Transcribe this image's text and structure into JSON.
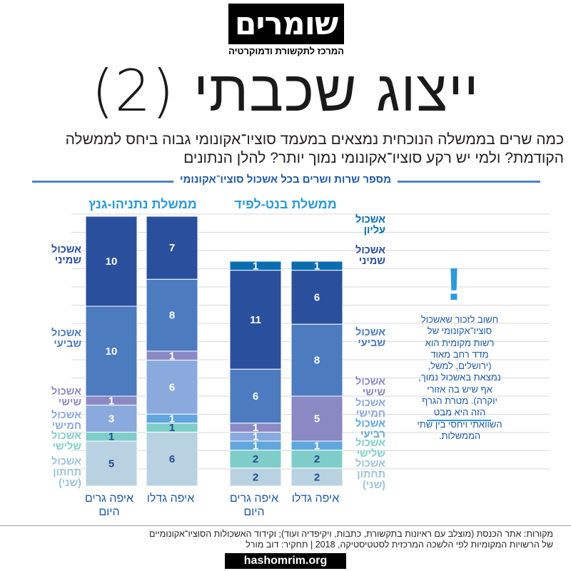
{
  "header": {
    "logo_text": "שומרים",
    "logo_subtitle": "המרכז לתקשורת ודמוקרטיה",
    "title": "ייצוג שכבתי (2)",
    "subtitle": "כמה שרים בממשלה הנוכחית נמצאים במעמד סוציו־אקונומי גבוה ביחס לממשלה הקודמת? ולמי יש רקע סוציו־אקונומי נמוך יותר? להלן הנתונים"
  },
  "section_title": "מספר שרות ושרים בכל אשכול סוציו־אקונומי",
  "clusters": [
    {
      "label": "אשכול עליון",
      "color": "#0a6db0"
    },
    {
      "label": "אשכול שמיני",
      "color": "#2a4f9c"
    },
    {
      "label": "אשכול שביעי",
      "color": "#4c7bc0"
    },
    {
      "label": "אשכול שישי",
      "color": "#8b89c4"
    },
    {
      "label": "אשכול חמישי",
      "color": "#8aa9dc"
    },
    {
      "label": "אשכול רביעי",
      "color": "#5fa7de"
    },
    {
      "label": "אשכול שלישי",
      "color": "#7fcdc9"
    },
    {
      "label": "אשכול תחתון (שני)",
      "color": "#b8d2e2"
    }
  ],
  "cluster_label_colors": {
    "left": [
      "#2a4f9c",
      "#4c7bc0",
      "#8b89c4",
      "#8aa9dc",
      "#7fcdc9",
      "#9ec3da"
    ],
    "right": [
      "#0a6db0",
      "#2a4f9c",
      "#4c7bc0",
      "#8b89c4",
      "#8aa9dc",
      "#5fa7de",
      "#7fcdc9",
      "#9ec3da"
    ]
  },
  "left_cluster_labels": [
    "אשכול שמיני",
    "אשכול שביעי",
    "אשכול שישי",
    "אשכול חמישי",
    "אשכול שלישי",
    "אשכול תחתון (שני)"
  ],
  "chart_data": {
    "type": "bar",
    "stacked": true,
    "governments": [
      "ממשלת נתניהו-גנץ",
      "ממשלת בנט-לפיד"
    ],
    "categories": [
      "איפה גרים היום",
      "איפה גדלו",
      "איפה גרים היום",
      "איפה גדלו"
    ],
    "category_government": [
      0,
      0,
      1,
      1
    ],
    "series": [
      {
        "name": "אשכול עליון",
        "values": [
          0,
          0,
          1,
          1
        ]
      },
      {
        "name": "אשכול שמיני",
        "values": [
          10,
          7,
          11,
          6
        ]
      },
      {
        "name": "אשכול שביעי",
        "values": [
          10,
          8,
          6,
          8
        ]
      },
      {
        "name": "אשכול שישי",
        "values": [
          1,
          1,
          1,
          5
        ]
      },
      {
        "name": "אשכול חמישי",
        "values": [
          3,
          6,
          1,
          0
        ]
      },
      {
        "name": "אשכול רביעי",
        "values": [
          0,
          1,
          1,
          1
        ]
      },
      {
        "name": "אשכול שלישי",
        "values": [
          1,
          1,
          2,
          2
        ]
      },
      {
        "name": "אשכול תחתון (שני)",
        "values": [
          5,
          6,
          2,
          2
        ]
      }
    ],
    "xlabel": "",
    "ylabel": "",
    "grid": true
  },
  "note": {
    "icon": "exclamation-icon",
    "text": "חשוב לזכור שאשכול סוציו־אקונומי של רשות מקומית הוא מדד רחב מאוד (ירושלים, למשל, נמצאת באשכול נמוך, אף שיש בה אזורי יוקרה). מטרת הגרף הזה היא מבט השוואתי ויחסי בין שתי הממשלות."
  },
  "sources": {
    "line1": "מקורות: אתר הכנסת (מוצלב עם ראיונות בתקשורת, כתבות, ויקיפדיה ועוד); וקידוד האשכולות הסוציו־אקונומיים",
    "line2": "של הרשויות המקומיות לפי הלשכה המרכזית לסטטיסטיקה, 2018 | תחקיר: דוב מורל"
  },
  "site_url": "hashomrim.org"
}
